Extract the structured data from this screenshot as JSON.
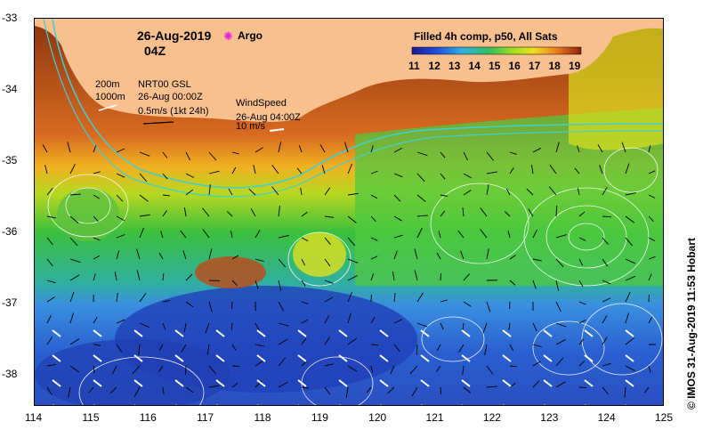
{
  "map": {
    "date_title": "26-Aug-2019",
    "time_title": "04Z",
    "argo_label": "Argo",
    "colorbar_title": "Filled 4h comp, p50, All Sats",
    "colorbar_ticks": [
      "11",
      "12",
      "13",
      "14",
      "15",
      "16",
      "17",
      "18",
      "19"
    ],
    "depth_200": "200m",
    "depth_1000": "1000m",
    "current_source": "NRT00 GSL",
    "current_time": "26-Aug 00:00Z",
    "current_scale": "0.5m/s (1kt 24h)",
    "wind_title": "WindSpeed",
    "wind_time": "26-Aug 04:00Z",
    "wind_scale": "10 m/s",
    "credit": "© IMOS 31-Aug-2019 11:53 Hobart",
    "lon_ticks": [
      "114",
      "115",
      "116",
      "117",
      "118",
      "119",
      "120",
      "121",
      "122",
      "123",
      "124",
      "125"
    ],
    "lat_ticks": [
      "-33",
      "-34",
      "-35",
      "-36",
      "-37",
      "-38"
    ],
    "colors": {
      "land": "#f8c08f",
      "warm": "#b84a10",
      "mid": "#43c43d",
      "cool": "#2a6fe0",
      "cold": "#1a2fa0",
      "argo": "#e020e0",
      "contour": "#ffffff",
      "shelf": "#40d0d0"
    }
  }
}
